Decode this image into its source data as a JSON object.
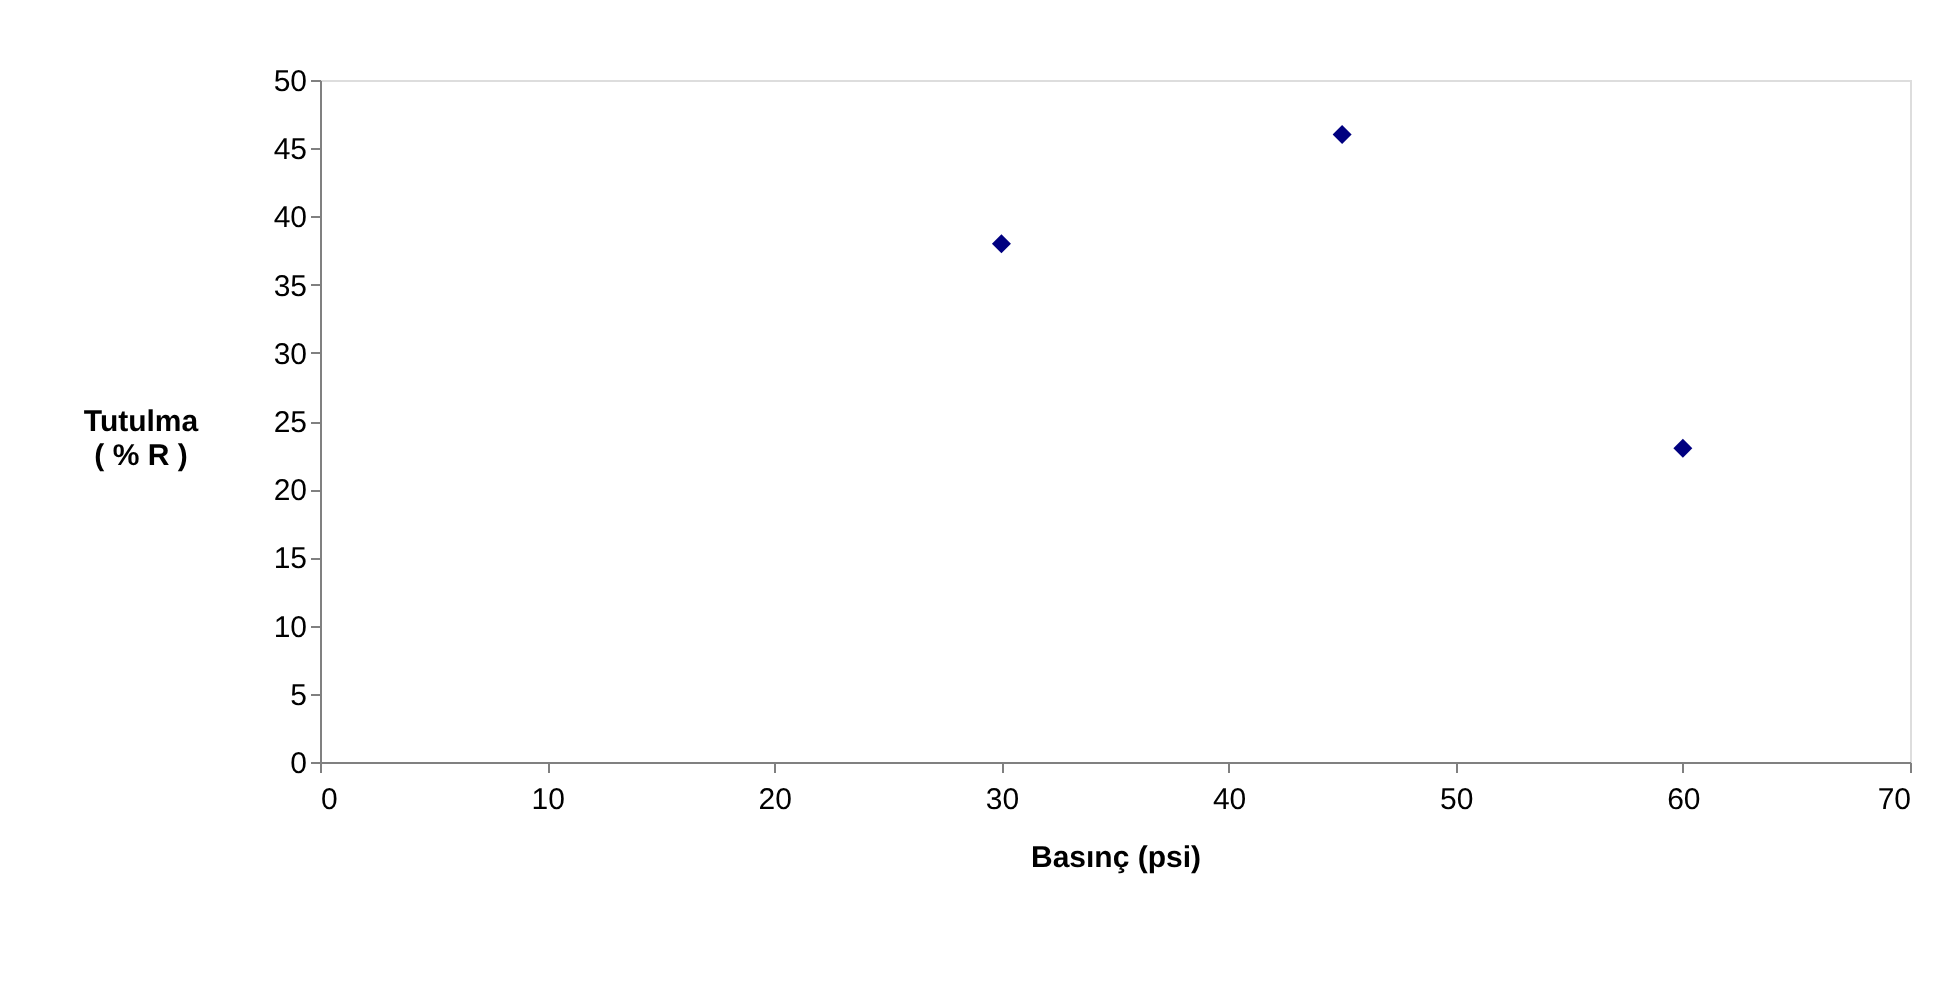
{
  "chart_data": {
    "type": "scatter",
    "xlabel": "Basınç (psi)",
    "ylabel": "Tutulma\n( % R )",
    "x": [
      30,
      45,
      60
    ],
    "series": [
      {
        "color": "#000080",
        "values": [
          38,
          46,
          23
        ]
      }
    ],
    "xlim": [
      0,
      70
    ],
    "xticks": [
      0,
      10,
      20,
      30,
      40,
      50,
      60,
      70
    ],
    "ylim": [
      0,
      50
    ],
    "yticks": [
      0,
      5,
      10,
      15,
      20,
      25,
      30,
      35,
      40,
      45,
      50
    ],
    "marker": "diamond",
    "grid": false
  }
}
